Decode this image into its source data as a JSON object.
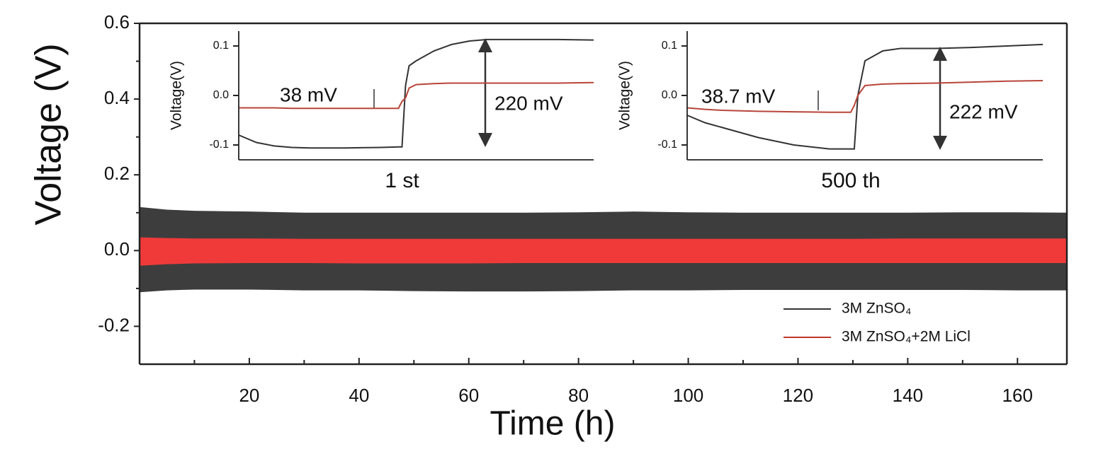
{
  "chart_data": [
    {
      "type": "band",
      "xlabel": "Time (h)",
      "ylabel": "Voltage (V)",
      "x": [
        0,
        5,
        10,
        20,
        30,
        40,
        50,
        60,
        70,
        80,
        90,
        100,
        110,
        120,
        130,
        140,
        150,
        160,
        169
      ],
      "series": [
        {
          "name": "3M ZnSO₄",
          "color": "#3d3d3d",
          "legend_color": "#333333",
          "high": [
            0.115,
            0.108,
            0.105,
            0.103,
            0.1,
            0.1,
            0.1,
            0.1,
            0.1,
            0.101,
            0.103,
            0.101,
            0.1,
            0.1,
            0.1,
            0.1,
            0.101,
            0.101,
            0.1
          ],
          "low": [
            -0.11,
            -0.105,
            -0.103,
            -0.103,
            -0.105,
            -0.105,
            -0.107,
            -0.108,
            -0.108,
            -0.107,
            -0.105,
            -0.105,
            -0.104,
            -0.104,
            -0.104,
            -0.104,
            -0.104,
            -0.105,
            -0.105
          ]
        },
        {
          "name": "3M ZnSO₄+2M LiCl",
          "color": "#f03a3a",
          "legend_color": "#c0392b",
          "high": [
            0.035,
            0.033,
            0.032,
            0.032,
            0.031,
            0.031,
            0.031,
            0.031,
            0.031,
            0.031,
            0.031,
            0.031,
            0.031,
            0.031,
            0.031,
            0.032,
            0.032,
            0.032,
            0.032
          ],
          "low": [
            -0.04,
            -0.036,
            -0.034,
            -0.033,
            -0.033,
            -0.034,
            -0.034,
            -0.034,
            -0.033,
            -0.033,
            -0.033,
            -0.033,
            -0.033,
            -0.033,
            -0.033,
            -0.033,
            -0.033,
            -0.033,
            -0.033
          ]
        }
      ],
      "xlim": [
        0,
        169
      ],
      "xticks": [
        20,
        40,
        60,
        80,
        100,
        120,
        140,
        160
      ],
      "xticks_minor": [
        10,
        30,
        50,
        70,
        90,
        110,
        130,
        150
      ],
      "ylim": [
        -0.3,
        0.6
      ],
      "yticks": [
        -0.2,
        {
          "value": 0,
          "label": "0.0"
        },
        0.2,
        0.4,
        0.6
      ],
      "yticks_minor": [
        -0.1,
        0.1,
        0.3,
        0.5
      ],
      "legend": "lower right"
    },
    {
      "type": "line",
      "xlabel": "1 st",
      "ylabel": "Voltage(V)",
      "x": [
        0,
        5,
        10,
        15,
        20,
        30,
        40,
        45,
        46,
        47,
        48,
        50,
        55,
        60,
        65,
        70,
        80,
        90,
        100
      ],
      "series": [
        {
          "color": "#333333",
          "values": [
            -0.08,
            -0.095,
            -0.102,
            -0.105,
            -0.106,
            -0.106,
            -0.105,
            -0.104,
            -0.104,
            0.02,
            0.06,
            0.07,
            0.09,
            0.103,
            0.11,
            0.113,
            0.113,
            0.113,
            0.112
          ]
        },
        {
          "color": "#b8453a",
          "values": [
            -0.025,
            -0.025,
            -0.025,
            -0.026,
            -0.026,
            -0.026,
            -0.026,
            -0.026,
            -0.012,
            -0.005,
            0.015,
            0.022,
            0.024,
            0.025,
            0.025,
            0.025,
            0.025,
            0.025,
            0.026
          ]
        }
      ],
      "xlim": [
        0,
        100
      ],
      "ylim": [
        -0.13,
        0.13
      ],
      "yticks": [
        -0.1,
        {
          "value": 0,
          "label": "0.0"
        },
        0.1
      ],
      "annotations": [
        "38 mV",
        "220 mV"
      ],
      "annotation_colors": [
        "#b03030",
        "#222222"
      ]
    },
    {
      "type": "line",
      "xlabel": "500 th",
      "ylabel": "Voltage(V)",
      "x": [
        0,
        5,
        10,
        20,
        30,
        40,
        46,
        47,
        48,
        50,
        55,
        60,
        70,
        80,
        90,
        100
      ],
      "series": [
        {
          "color": "#333333",
          "values": [
            -0.04,
            -0.055,
            -0.065,
            -0.085,
            -0.1,
            -0.108,
            -0.108,
            -0.108,
            0.0,
            0.07,
            0.09,
            0.095,
            0.095,
            0.097,
            0.1,
            0.103
          ]
        },
        {
          "color": "#b8453a",
          "values": [
            -0.025,
            -0.028,
            -0.03,
            -0.032,
            -0.033,
            -0.034,
            -0.034,
            -0.02,
            0.0,
            0.02,
            0.023,
            0.024,
            0.025,
            0.027,
            0.029,
            0.03
          ]
        }
      ],
      "xlim": [
        0,
        100
      ],
      "ylim": [
        -0.13,
        0.13
      ],
      "yticks": [
        -0.1,
        {
          "value": 0,
          "label": "0.0"
        },
        0.1
      ],
      "annotations": [
        "38.7 mV",
        "222 mV"
      ],
      "annotation_colors": [
        "#b03030",
        "#222222"
      ]
    }
  ]
}
